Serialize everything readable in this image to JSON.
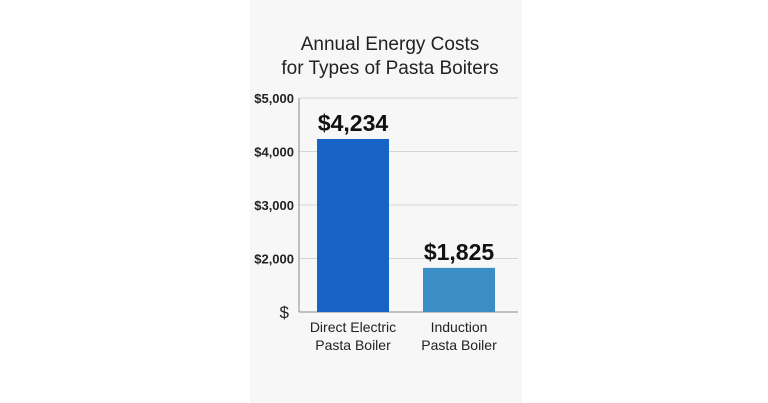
{
  "chart_data": {
    "type": "bar",
    "title_lines": [
      "Annual Energy Costs",
      "for Types of Pasta Boiters"
    ],
    "categories": [
      [
        "Direct Electric",
        "Pasta Boiler"
      ],
      [
        "Induction",
        "Pasta Boiler"
      ]
    ],
    "values": [
      4234,
      1825
    ],
    "data_labels": [
      "$4,234",
      "$1,825"
    ],
    "y_ticks": [
      1000,
      2000,
      3000,
      4000,
      5000
    ],
    "y_tick_labels": [
      "$",
      "$2,000",
      "$3,000",
      "$4,000",
      "$5,000"
    ],
    "ylim": [
      1000,
      5000
    ],
    "grid": true,
    "colors": [
      "#1763c6",
      "#3a8ec3"
    ]
  }
}
